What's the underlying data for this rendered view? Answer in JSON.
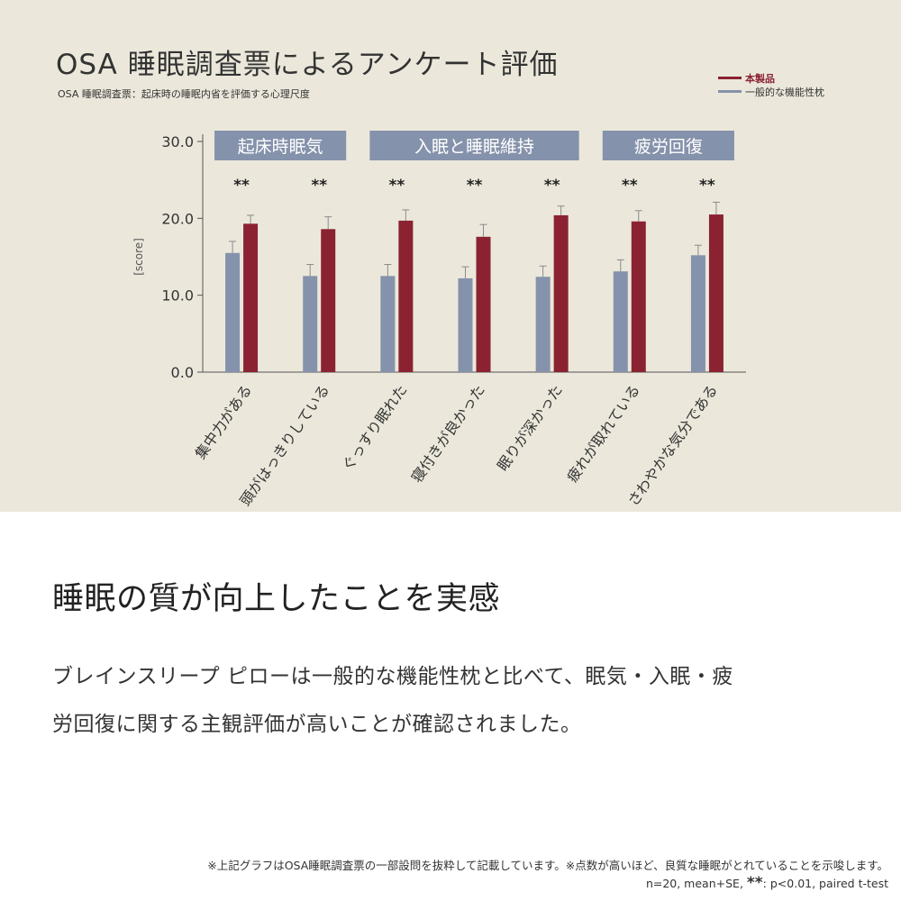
{
  "chart_data": {
    "type": "bar",
    "title": "OSA 睡眠調査票によるアンケート評価",
    "subtitle": "OSA 睡眠調査票：起床時の睡眠内省を評価する心理尺度",
    "ylabel": "[score]",
    "ylim": [
      0,
      30
    ],
    "yticks": [
      "0.0",
      "10.0",
      "20.0",
      "30.0"
    ],
    "legend_position": "top-right",
    "categories": [
      "集中力がある",
      "頭がはっきりしている",
      "ぐっすり眠れた",
      "寝付きが良かった",
      "眠りが深かった",
      "疲れが取れている",
      "さわやかな気分である"
    ],
    "series": [
      {
        "name": "一般的な機能性枕",
        "color": "#8592ab",
        "values": [
          15.5,
          12.5,
          12.5,
          12.2,
          12.4,
          13.1,
          15.2
        ],
        "errors": [
          1.5,
          1.5,
          1.5,
          1.5,
          1.4,
          1.5,
          1.3
        ]
      },
      {
        "name": "本製品",
        "color": "#8a2232",
        "values": [
          19.3,
          18.6,
          19.7,
          17.6,
          20.4,
          19.6,
          20.5
        ],
        "errors": [
          1.1,
          1.6,
          1.4,
          1.6,
          1.2,
          1.4,
          1.6
        ]
      }
    ],
    "significance": [
      "**",
      "**",
      "**",
      "**",
      "**",
      "**",
      "**"
    ],
    "groups": [
      {
        "label": "起床時眠気",
        "categories": [
          0,
          1
        ]
      },
      {
        "label": "入眠と睡眠維持",
        "categories": [
          2,
          3,
          4
        ]
      },
      {
        "label": "疲労回復",
        "categories": [
          5,
          6
        ]
      }
    ]
  },
  "legend": {
    "product_label": "本製品",
    "general_label": "一般的な機能性枕",
    "product_color": "#8a2232",
    "general_color": "#8592ab"
  },
  "headline": "睡眠の質が向上したことを実感",
  "body": {
    "line1": "ブレインスリープ ピローは一般的な機能性枕と比べて、眠気・入眠・疲",
    "line2": "労回復に関する主観評価が高いことが確認されました。"
  },
  "footnote": {
    "line1": "※上記グラフはOSA睡眠調査票の一部設問を抜粋して記載しています。※点数が高いほど、良質な睡眠がとれていることを示唆します。",
    "stats_prefix": "n=20, mean+SE, ",
    "stats_star": "**",
    "stats_suffix": ": p<0.01, paired t-test"
  }
}
